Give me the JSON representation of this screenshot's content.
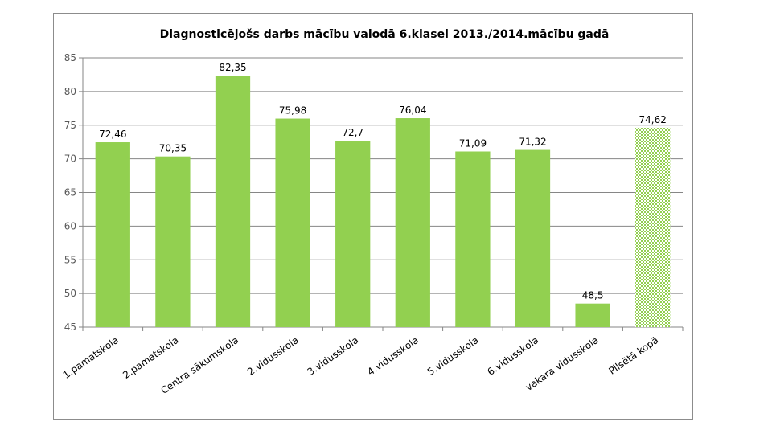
{
  "chart_data": {
    "type": "bar",
    "title": "Diagnosticējošs darbs mācību valodā 6.klasei 2013./2014.mācību gadā",
    "categories": [
      "1.pamatskola",
      "2.pamatskola",
      "Centra sākumskola",
      "2.vidusskola",
      "3.vidusskola",
      "4.vidusskola",
      "5.vidusskola",
      "6.vidusskola",
      "vakara vidusskola",
      "Pilsētā kopā"
    ],
    "values": [
      72.46,
      70.35,
      82.35,
      75.98,
      72.7,
      76.04,
      71.09,
      71.32,
      48.5,
      74.62
    ],
    "data_labels": [
      "72,46",
      "70,35",
      "82,35",
      "75,98",
      "72,7",
      "76,04",
      "71,09",
      "71,32",
      "48,5",
      "74,62"
    ],
    "ylim": [
      45,
      85
    ],
    "yticks": [
      45,
      50,
      55,
      60,
      65,
      70,
      75,
      80,
      85
    ],
    "grid": true,
    "legend": "none",
    "xlabel": "",
    "ylabel": "",
    "colors": {
      "bar": "#92d050",
      "highlight_bar": "#92d050",
      "highlight_pattern": "checkered",
      "grid": "#868686"
    }
  }
}
